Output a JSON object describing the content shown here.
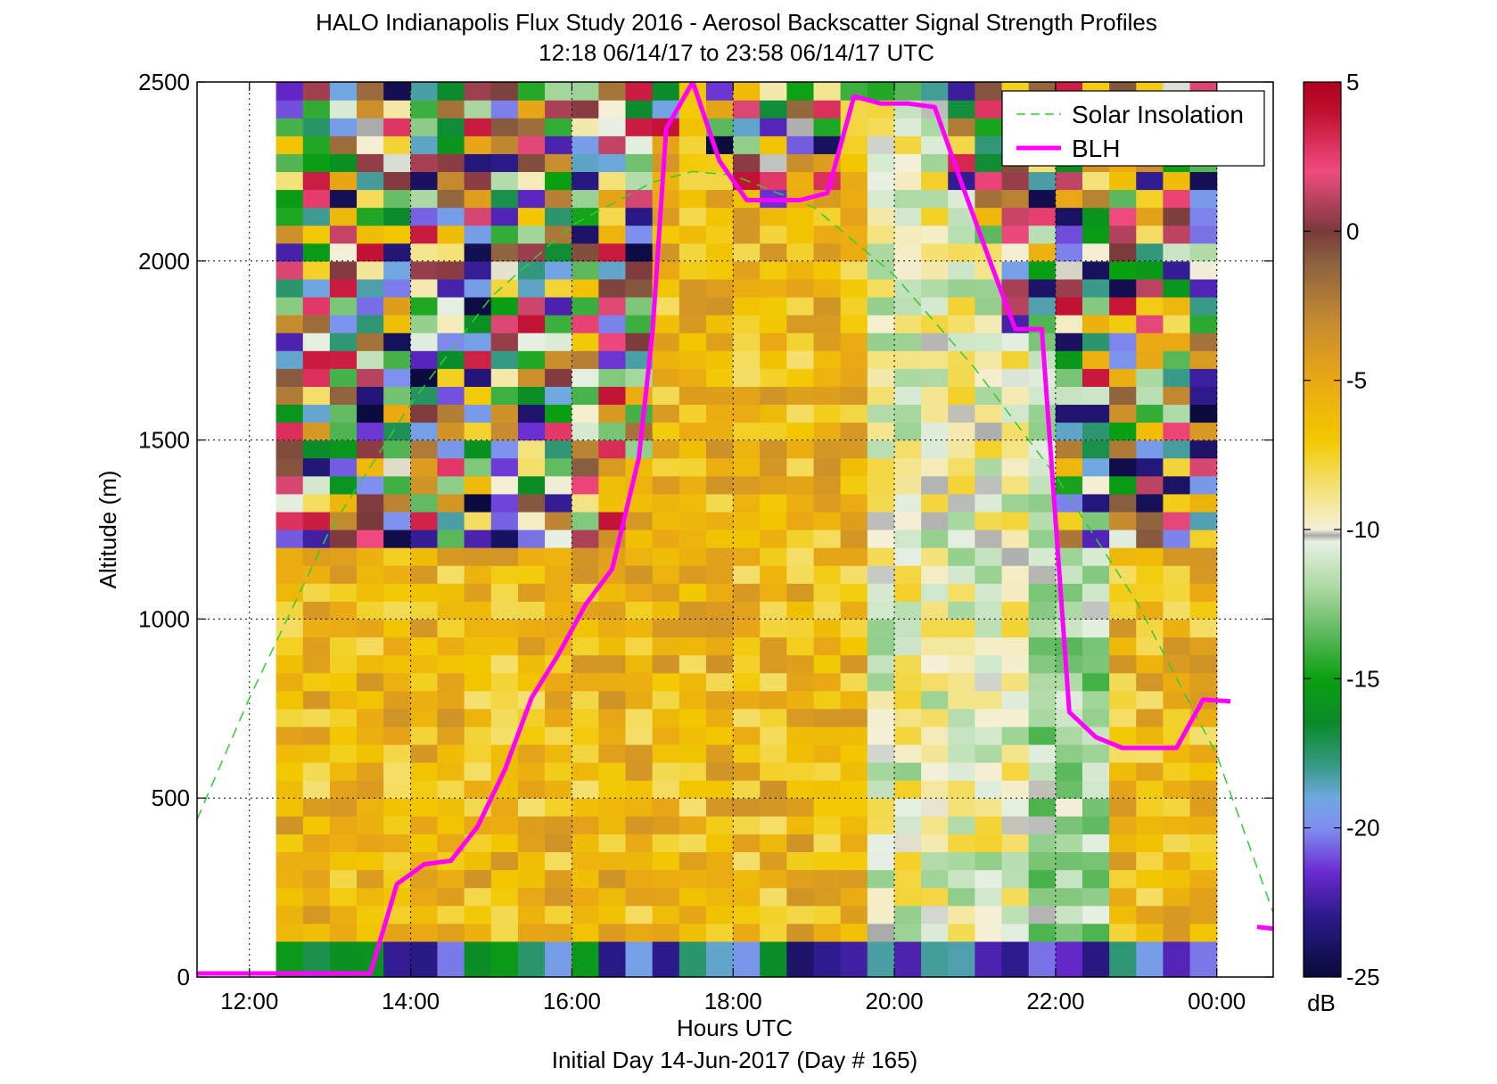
{
  "title_line1": "HALO Indianapolis Flux Study 2016 - Aerosol Backscatter Signal Strength Profiles",
  "title_line2": "12:18 06/14/17 to 23:58 06/14/17  UTC",
  "chart_data": {
    "type": "heatmap",
    "title": "HALO Indianapolis Flux Study 2016 - Aerosol Backscatter Signal Strength Profiles",
    "subtitle": "12:18 06/14/17 to 23:58 06/14/17  UTC",
    "xlabel": "Hours UTC",
    "xlabel2": "Initial Day 14-Jun-2017 (Day # 165)",
    "ylabel": "Altitude (m)",
    "x_ticks": [
      {
        "hour": 12,
        "label": "12:00"
      },
      {
        "hour": 14,
        "label": "14:00"
      },
      {
        "hour": 16,
        "label": "16:00"
      },
      {
        "hour": 18,
        "label": "18:00"
      },
      {
        "hour": 20,
        "label": "20:00"
      },
      {
        "hour": 22,
        "label": "22:00"
      },
      {
        "hour": 24,
        "label": "00:00"
      }
    ],
    "y_ticks": [
      {
        "value": 0,
        "label": "0"
      },
      {
        "value": 500,
        "label": "500"
      },
      {
        "value": 1000,
        "label": "1000"
      },
      {
        "value": 1500,
        "label": "1500"
      },
      {
        "value": 2000,
        "label": "2000"
      },
      {
        "value": 2500,
        "label": "2500"
      }
    ],
    "xlim": [
      11.35,
      24.7
    ],
    "ylim": [
      0,
      2500
    ],
    "grid": "dotted",
    "legend_position": "top-right",
    "colorbar": {
      "label": "dB",
      "range": [
        -25,
        5
      ],
      "ticks": [
        {
          "value": 5,
          "label": "5"
        },
        {
          "value": 0,
          "label": "0"
        },
        {
          "value": -5,
          "label": "-5"
        },
        {
          "value": -10,
          "label": "-10"
        },
        {
          "value": -15,
          "label": "-15"
        },
        {
          "value": -20,
          "label": "-20"
        },
        {
          "value": -25,
          "label": "-25"
        }
      ],
      "stops": [
        {
          "v": -25,
          "color": "#0a0a3a"
        },
        {
          "v": -23,
          "color": "#2a1a8a"
        },
        {
          "v": -21.5,
          "color": "#6a2ad0"
        },
        {
          "v": -20,
          "color": "#7f8ff0"
        },
        {
          "v": -19,
          "color": "#6fa8e0"
        },
        {
          "v": -18,
          "color": "#3a9a8a"
        },
        {
          "v": -16.5,
          "color": "#0a8a2a"
        },
        {
          "v": -15,
          "color": "#0aa010"
        },
        {
          "v": -13.5,
          "color": "#5cb85c"
        },
        {
          "v": -12,
          "color": "#a9d8a0"
        },
        {
          "v": -10.4,
          "color": "#e8f0e4"
        },
        {
          "v": -10.2,
          "color": "#aaaaaa"
        },
        {
          "v": -10,
          "color": "#f4f0d8"
        },
        {
          "v": -8.5,
          "color": "#f4e070"
        },
        {
          "v": -7,
          "color": "#f2c800"
        },
        {
          "v": -5,
          "color": "#eaa814"
        },
        {
          "v": -3,
          "color": "#c48a30"
        },
        {
          "v": -1,
          "color": "#8a6040"
        },
        {
          "v": 0,
          "color": "#7a3a3a"
        },
        {
          "v": 2,
          "color": "#f04a80"
        },
        {
          "v": 4,
          "color": "#c01030"
        },
        {
          "v": 5,
          "color": "#b00020"
        }
      ]
    },
    "heatmap": {
      "x_start": 12.33,
      "x_end": 24.0,
      "n_cols": 35,
      "rows": [
        {
          "bottom": 0,
          "top": 100
        },
        {
          "bottom": 100,
          "top": 2500
        }
      ],
      "profile_model": "low-level aerosol layer of about -6 dB below the boundary layer height, variable -25 to 4 dB above it"
    },
    "series": [
      {
        "name": "Solar Insolation",
        "style": "dashed",
        "color": "#33cc33",
        "x": [
          11.35,
          12.0,
          13.0,
          14.0,
          15.0,
          16.0,
          17.0,
          17.5,
          18.0,
          19.0,
          20.0,
          21.0,
          22.0,
          23.0,
          24.0,
          24.7
        ],
        "y": [
          440,
          780,
          1250,
          1600,
          1900,
          2100,
          2220,
          2250,
          2240,
          2150,
          1960,
          1700,
          1400,
          1050,
          620,
          180
        ]
      },
      {
        "name": "BLH",
        "style": "solid",
        "color": "#ff00ff",
        "x": [
          11.35,
          13.5,
          13.83,
          14.17,
          14.5,
          14.83,
          15.17,
          15.5,
          15.83,
          16.17,
          16.5,
          16.83,
          17.0,
          17.17,
          17.5,
          17.83,
          18.17,
          18.5,
          18.83,
          19.17,
          19.5,
          19.83,
          20.17,
          20.5,
          20.83,
          21.17,
          21.5,
          21.83,
          22.17,
          22.5,
          22.83,
          23.17,
          23.5,
          23.83,
          24.17
        ],
        "y": [
          10,
          10,
          260,
          315,
          325,
          420,
          580,
          780,
          900,
          1040,
          1140,
          1450,
          1800,
          2370,
          2500,
          2280,
          2170,
          2170,
          2170,
          2190,
          2460,
          2440,
          2440,
          2430,
          2220,
          2010,
          1810,
          1810,
          740,
          670,
          640,
          640,
          640,
          775,
          770
        ]
      },
      {
        "name": "BLH",
        "style": "solid",
        "color": "#ff00ff",
        "x": [
          24.5,
          24.7
        ],
        "y": [
          140,
          135
        ]
      }
    ]
  },
  "legend": [
    {
      "label": "Solar Insolation",
      "style": "dashed",
      "color": "#33cc33"
    },
    {
      "label": "BLH",
      "style": "solid",
      "color": "#ff00ff"
    }
  ]
}
